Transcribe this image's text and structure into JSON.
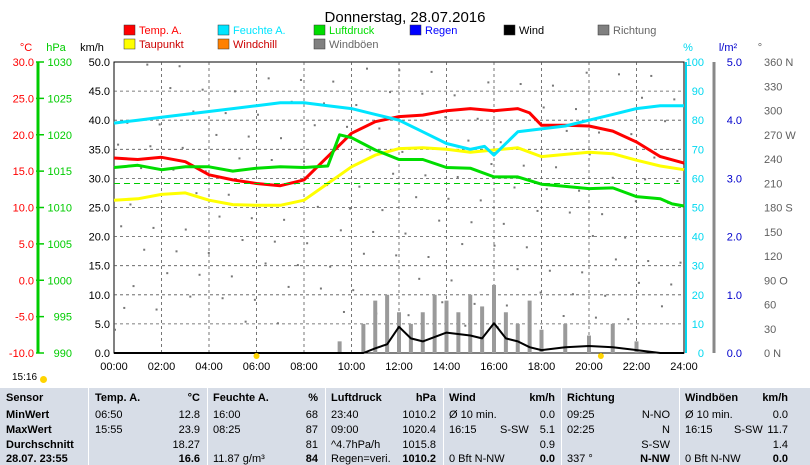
{
  "chart_data": {
    "type": "line",
    "title": "Donnerstag, 28.07.2016",
    "x_ticks": [
      "00:00",
      "02:00",
      "04:00",
      "06:00",
      "08:00",
      "10:00",
      "12:00",
      "14:00",
      "16:00",
      "18:00",
      "20:00",
      "22:00",
      "24:00"
    ],
    "xlim_hours": [
      0,
      24
    ],
    "grid": true,
    "legend_placement": "top",
    "legend": [
      {
        "name": "Temp. A.",
        "color": "#ff0000"
      },
      {
        "name": "Feuchte A.",
        "color": "#00e5ff"
      },
      {
        "name": "Luftdruck",
        "color": "#00dd00"
      },
      {
        "name": "Regen",
        "color": "#0000ff"
      },
      {
        "name": "Wind",
        "color": "#000000"
      },
      {
        "name": "Richtung",
        "color": "#808080"
      },
      {
        "name": "Taupunkt",
        "color": "#ffff00"
      },
      {
        "name": "Windchill",
        "color": "#ff8000"
      },
      {
        "name": "Windböen",
        "color": "#808080"
      }
    ],
    "axes": {
      "temp": {
        "unit": "°C",
        "ticks": [
          "30.0",
          "25.0",
          "20.0",
          "15.0",
          "10.0",
          "5.0",
          "0.0",
          "-5.0",
          "-10.0"
        ],
        "ylim": [
          -10,
          30
        ],
        "color": "#ff0000"
      },
      "pressure": {
        "unit": "hPa",
        "ticks": [
          "1030",
          "1025",
          "1020",
          "1015",
          "1010",
          "1005",
          "1000",
          "995",
          "990"
        ],
        "ylim": [
          990,
          1030
        ],
        "color": "#00cc00"
      },
      "wind": {
        "unit": "km/h",
        "ticks": [
          "50.0",
          "45.0",
          "40.0",
          "35.0",
          "30.0",
          "25.0",
          "20.0",
          "15.0",
          "10.0",
          "5.0",
          "0.0"
        ],
        "ylim": [
          0,
          50
        ],
        "color": "#000000"
      },
      "humidity": {
        "unit": "%",
        "ticks": [
          "100",
          "90",
          "80",
          "70",
          "60",
          "50",
          "40",
          "30",
          "20",
          "10",
          "0"
        ],
        "ylim": [
          0,
          100
        ],
        "color": "#00d8f0"
      },
      "rain": {
        "unit": "l/m²",
        "ticks": [
          "5.0",
          "4.0",
          "3.0",
          "2.0",
          "1.0",
          "0.0"
        ],
        "ylim": [
          0,
          5
        ],
        "color": "#0000cc"
      },
      "direction": {
        "unit": "°",
        "ticks": [
          "360 N",
          "330",
          "300",
          "270 W",
          "240",
          "210",
          "180 S",
          "150",
          "120",
          "90 O",
          "60",
          "30",
          "0 N"
        ],
        "ylim": [
          0,
          360
        ],
        "color": "#606060"
      }
    },
    "series": [
      {
        "name": "Temp. A.",
        "axis": "temp",
        "x": [
          0,
          1,
          2,
          3,
          4,
          5,
          6,
          7,
          8,
          9,
          10,
          11,
          12,
          13,
          14,
          15,
          16,
          17,
          17.5,
          18,
          19,
          20,
          21,
          22,
          23,
          24
        ],
        "y": [
          16.8,
          16.6,
          16.9,
          16.3,
          14.5,
          13.8,
          13.3,
          13.0,
          13.8,
          17.0,
          20.2,
          21.8,
          22.5,
          22.7,
          23.3,
          23.6,
          23.3,
          23.6,
          23.0,
          21.3,
          21.3,
          21.2,
          20.5,
          19.0,
          17.0,
          16.1
        ]
      },
      {
        "name": "Taupunkt",
        "axis": "temp",
        "x": [
          0,
          1,
          2,
          3,
          4,
          5,
          6,
          7,
          8,
          9,
          10,
          11,
          12,
          13,
          14,
          15,
          16,
          17,
          18,
          19,
          20,
          21,
          22,
          23,
          24
        ],
        "y": [
          11.0,
          11.2,
          11.8,
          12.0,
          11.0,
          10.4,
          10.3,
          10.3,
          11.0,
          13.3,
          15.6,
          17.2,
          18.1,
          18.2,
          18.0,
          17.6,
          17.9,
          18.2,
          17.0,
          17.3,
          17.6,
          17.4,
          16.5,
          15.7,
          15.2
        ]
      },
      {
        "name": "Feuchte A.",
        "axis": "humidity",
        "x": [
          0,
          1,
          2,
          3,
          4,
          5,
          6,
          7,
          8,
          9,
          10,
          11,
          12,
          13,
          14,
          15,
          15.6,
          16,
          17,
          18,
          19,
          20,
          21,
          22,
          23,
          24
        ],
        "y": [
          79,
          80,
          81,
          82,
          83,
          84,
          85,
          86,
          86,
          85,
          84,
          82,
          80,
          76,
          72,
          70,
          71,
          68,
          76,
          77,
          78,
          80,
          82,
          84,
          85,
          85
        ]
      },
      {
        "name": "Luftdruck",
        "axis": "pressure",
        "x": [
          0,
          1,
          2,
          3,
          4,
          5,
          6,
          7,
          8,
          9,
          9.5,
          10,
          11,
          12,
          13,
          14,
          15,
          16,
          17,
          18,
          19,
          20,
          21,
          22,
          23,
          23.5,
          24
        ],
        "y": [
          1015.5,
          1015.8,
          1015.2,
          1015.6,
          1015.6,
          1015.0,
          1015.4,
          1015.6,
          1015.5,
          1015.7,
          1020.0,
          1019.6,
          1017.9,
          1016.6,
          1016.6,
          1015.5,
          1015.4,
          1014.2,
          1014.2,
          1013.2,
          1012.9,
          1012.6,
          1012.7,
          1011.5,
          1011.2,
          1010.5,
          1010.2
        ]
      },
      {
        "name": "Wind",
        "axis": "wind",
        "x": [
          0,
          2,
          4,
          6,
          8,
          9,
          10,
          10.5,
          11,
          11.5,
          12,
          12.5,
          13,
          14,
          15,
          15.5,
          16,
          16.5,
          17,
          17.5,
          18,
          19,
          20,
          21,
          22,
          23,
          24
        ],
        "y": [
          0,
          0,
          0,
          0,
          0,
          0,
          0,
          0,
          0.8,
          1.5,
          4.5,
          2.5,
          2.0,
          3.5,
          3.0,
          2.5,
          5.1,
          2.5,
          2.0,
          1.0,
          0.5,
          1.0,
          1.2,
          1.0,
          0.5,
          0,
          0
        ]
      },
      {
        "name": "Windböen",
        "axis": "wind",
        "x": [
          8.5,
          9.5,
          10.5,
          11,
          11.5,
          12,
          12.5,
          13,
          13.5,
          14,
          14.5,
          15,
          15.5,
          16,
          16.5,
          17,
          17.5,
          18,
          19,
          20,
          21,
          22
        ],
        "y": [
          0,
          2,
          5,
          9,
          10,
          7,
          5,
          7,
          10,
          9,
          7,
          10,
          8,
          11.7,
          7,
          5,
          9,
          4,
          5,
          3,
          5,
          2
        ]
      }
    ],
    "markers_x_hours": [
      6.0,
      20.5
    ]
  },
  "footer": {
    "time": "15:16"
  },
  "table": {
    "headers": {
      "sensor": "Sensor",
      "temp": "Temp. A.",
      "temp_unit": "°C",
      "hum": "Feuchte A.",
      "hum_unit": "%",
      "pres": "Luftdruck",
      "pres_unit": "hPa",
      "wind": "Wind",
      "wind_unit": "km/h",
      "dir": "Richtung",
      "gust": "Windböen",
      "gust_unit": "km/h"
    },
    "rows": [
      {
        "label": "MinWert",
        "t_time": "06:50",
        "t_val": "12.8",
        "h_time": "16:00",
        "h_val": "68",
        "p_time": "23:40",
        "p_val": "1010.2",
        "w_time": "Ø 10 min.",
        "w_val": "0.0",
        "d_time": "09:25",
        "d_val": "N-NO",
        "g_time": "Ø 10 min.",
        "g_val": "0.0"
      },
      {
        "label": "MaxWert",
        "t_time": "15:55",
        "t_val": "23.9",
        "h_time": "08:25",
        "h_val": "87",
        "p_time": "09:00",
        "p_val": "1020.4",
        "w_time": "16:15",
        "w_dir": "S-SW",
        "w_val": "5.1",
        "d_time": "02:25",
        "d_val": "N",
        "g_time": "16:15",
        "g_dir": "S-SW",
        "g_val": "11.7"
      },
      {
        "label": "Durchschnitt",
        "t_time": "",
        "t_val": "18.27",
        "h_time": "",
        "h_val": "81",
        "p_time": "^4.7hPa/h",
        "p_val": "1015.8",
        "w_time": "",
        "w_val": "0.9",
        "d_time": "",
        "d_val": "S-SW",
        "g_time": "",
        "g_val": "1.4"
      },
      {
        "label": "28.07. 23:55",
        "t_time": "",
        "t_val": "16.6",
        "h_time": "11.87 g/m³",
        "h_val": "84",
        "p_time": "Regen=veri.",
        "p_val": "1010.2",
        "w_time": "0 Bft N-NW",
        "w_val": "0.0",
        "d_time": "337 °",
        "d_val": "N-NW",
        "g_time": "0 Bft N-NW",
        "g_val": "0.0"
      }
    ]
  }
}
